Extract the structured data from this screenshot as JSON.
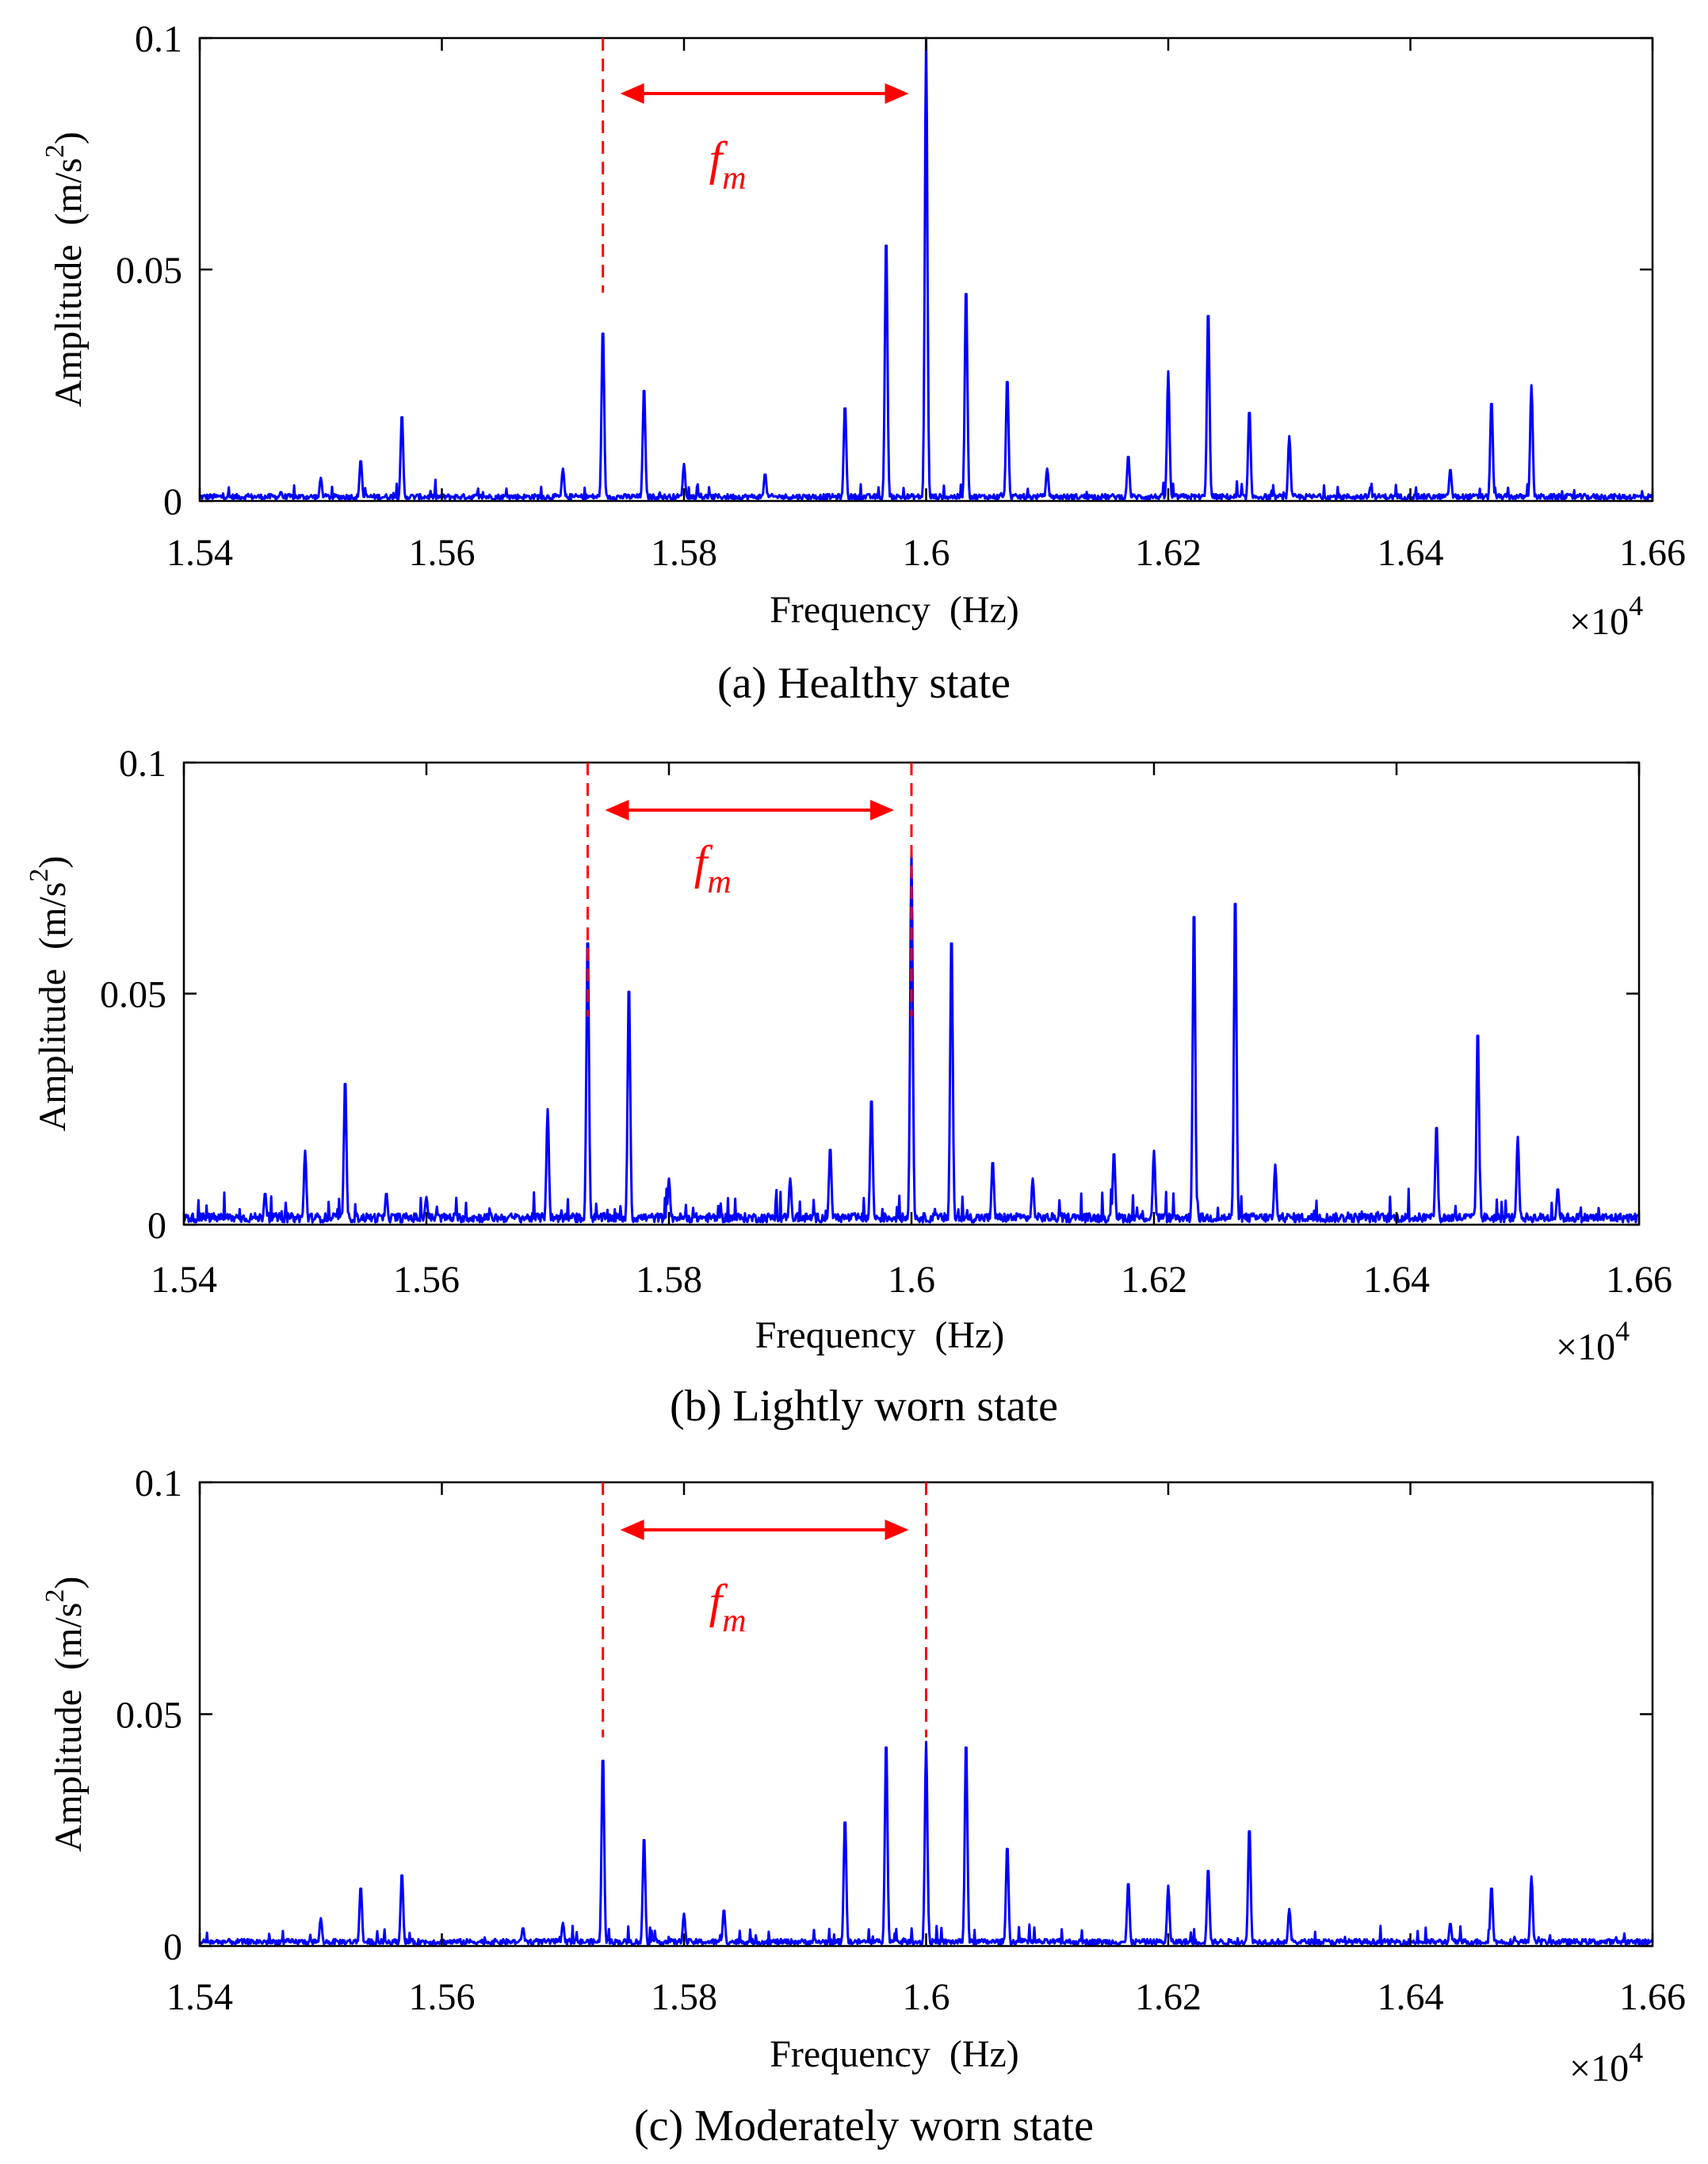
{
  "figure": {
    "colors": {
      "signal": "#0000ff",
      "annotation": "#ff0000",
      "axis": "#000000"
    }
  },
  "chart_data": [
    {
      "type": "line",
      "caption": "(a) Healthy state",
      "xlabel": "Frequency  (Hz)",
      "ylabel": "Amplitude  (m/s",
      "ylabel_sup": "2",
      "ylabel_end": ")",
      "x_multiplier": "×10",
      "x_multiplier_exp": "4",
      "xlim": [
        1.54,
        1.66
      ],
      "ylim": [
        0,
        0.1
      ],
      "xticks": [
        "1.54",
        "1.56",
        "1.58",
        "1.6",
        "1.62",
        "1.64",
        "1.66"
      ],
      "xtick_values": [
        1.54,
        1.56,
        1.58,
        1.6,
        1.62,
        1.64,
        1.66
      ],
      "yticks": [
        "0",
        "0.05",
        "0.1"
      ],
      "ytick_values": [
        0,
        0.05,
        0.1
      ],
      "annotation": {
        "label": "f",
        "subscript": "m",
        "x_start": 1.5733,
        "x_end": 1.6,
        "dashed_lines": [
          1.5733
        ]
      },
      "noise_floor": 0.0015,
      "peaks": [
        [
          1.5467,
          0.002
        ],
        [
          1.55,
          0.005
        ],
        [
          1.5533,
          0.009
        ],
        [
          1.5567,
          0.019
        ],
        [
          1.57,
          0.007
        ],
        [
          1.5733,
          0.038
        ],
        [
          1.5767,
          0.025
        ],
        [
          1.58,
          0.008
        ],
        [
          1.5867,
          0.006
        ],
        [
          1.5933,
          0.021
        ],
        [
          1.5967,
          0.058
        ],
        [
          1.6,
          0.1
        ],
        [
          1.6033,
          0.047
        ],
        [
          1.6067,
          0.027
        ],
        [
          1.61,
          0.007
        ],
        [
          1.6167,
          0.01
        ],
        [
          1.62,
          0.028
        ],
        [
          1.6233,
          0.042
        ],
        [
          1.6267,
          0.02
        ],
        [
          1.63,
          0.014
        ],
        [
          1.6367,
          0.003
        ],
        [
          1.6433,
          0.007
        ],
        [
          1.6467,
          0.022
        ],
        [
          1.65,
          0.025
        ]
      ]
    },
    {
      "type": "line",
      "caption": "(b) Lightly worn state",
      "xlabel": "Frequency  (Hz)",
      "ylabel": "Amplitude  (m/s",
      "ylabel_sup": "2",
      "ylabel_end": ")",
      "x_multiplier": "×10",
      "x_multiplier_exp": "4",
      "xlim": [
        1.54,
        1.66
      ],
      "ylim": [
        0,
        0.1
      ],
      "xticks": [
        "1.54",
        "1.56",
        "1.58",
        "1.6",
        "1.62",
        "1.64",
        "1.66"
      ],
      "xtick_values": [
        1.54,
        1.56,
        1.58,
        1.6,
        1.62,
        1.64,
        1.66
      ],
      "yticks": [
        "0",
        "0.05",
        "0.1"
      ],
      "ytick_values": [
        0,
        0.05,
        0.1
      ],
      "annotation": {
        "label": "f",
        "subscript": "m",
        "x_start": 1.5733,
        "x_end": 1.6,
        "dashed_lines": [
          1.5733,
          1.6
        ]
      },
      "noise_floor": 0.0025,
      "peaks": [
        [
          1.5467,
          0.007
        ],
        [
          1.55,
          0.016
        ],
        [
          1.5533,
          0.032
        ],
        [
          1.5567,
          0.007
        ],
        [
          1.56,
          0.006
        ],
        [
          1.57,
          0.025
        ],
        [
          1.5733,
          0.064
        ],
        [
          1.5767,
          0.053
        ],
        [
          1.58,
          0.01
        ],
        [
          1.59,
          0.01
        ],
        [
          1.5933,
          0.017
        ],
        [
          1.5967,
          0.028
        ],
        [
          1.6,
          0.081
        ],
        [
          1.6033,
          0.064
        ],
        [
          1.6067,
          0.014
        ],
        [
          1.61,
          0.01
        ],
        [
          1.6167,
          0.016
        ],
        [
          1.62,
          0.016
        ],
        [
          1.6233,
          0.07
        ],
        [
          1.6267,
          0.073
        ],
        [
          1.63,
          0.013
        ],
        [
          1.6433,
          0.022
        ],
        [
          1.6467,
          0.043
        ],
        [
          1.65,
          0.019
        ],
        [
          1.6533,
          0.008
        ]
      ]
    },
    {
      "type": "line",
      "caption": "(c) Moderately worn state",
      "xlabel": "Frequency  (Hz)",
      "ylabel": "Amplitude  (m/s",
      "ylabel_sup": "2",
      "ylabel_end": ")",
      "x_multiplier": "×10",
      "x_multiplier_exp": "4",
      "xlim": [
        1.54,
        1.66
      ],
      "ylim": [
        0,
        0.1
      ],
      "xticks": [
        "1.54",
        "1.56",
        "1.58",
        "1.6",
        "1.62",
        "1.64",
        "1.66"
      ],
      "xtick_values": [
        1.54,
        1.56,
        1.58,
        1.6,
        1.62,
        1.64,
        1.66
      ],
      "yticks": [
        "0",
        "0.05",
        "0.1"
      ],
      "ytick_values": [
        0,
        0.05,
        0.1
      ],
      "annotation": {
        "label": "f",
        "subscript": "m",
        "x_start": 1.5733,
        "x_end": 1.6,
        "dashed_lines": [
          1.5733,
          1.6
        ]
      },
      "noise_floor": 0.0015,
      "peaks": [
        [
          1.55,
          0.006
        ],
        [
          1.5533,
          0.013
        ],
        [
          1.5567,
          0.016
        ],
        [
          1.5667,
          0.004
        ],
        [
          1.57,
          0.005
        ],
        [
          1.5733,
          0.042
        ],
        [
          1.5767,
          0.024
        ],
        [
          1.58,
          0.007
        ],
        [
          1.5833,
          0.008
        ],
        [
          1.5933,
          0.028
        ],
        [
          1.5967,
          0.045
        ],
        [
          1.6,
          0.044
        ],
        [
          1.6033,
          0.045
        ],
        [
          1.6067,
          0.022
        ],
        [
          1.6167,
          0.014
        ],
        [
          1.62,
          0.013
        ],
        [
          1.6233,
          0.017
        ],
        [
          1.6267,
          0.026
        ],
        [
          1.63,
          0.008
        ],
        [
          1.6433,
          0.005
        ],
        [
          1.6467,
          0.013
        ],
        [
          1.65,
          0.015
        ]
      ]
    }
  ]
}
